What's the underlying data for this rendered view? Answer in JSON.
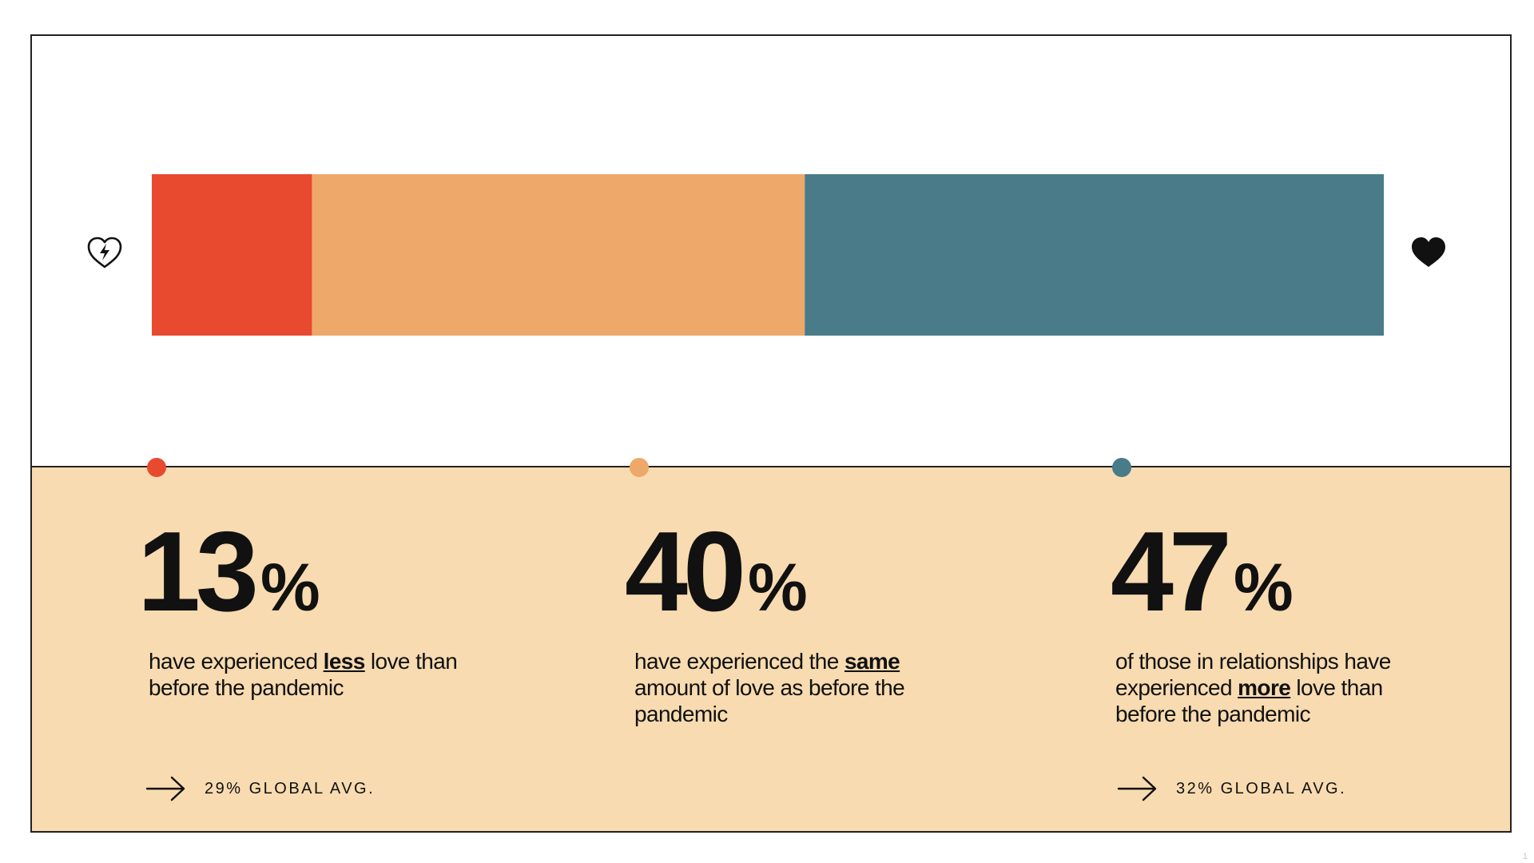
{
  "chart_data": {
    "type": "bar",
    "orientation": "horizontal-stacked",
    "categories": [
      "less",
      "same",
      "more"
    ],
    "values": [
      13,
      40,
      47
    ],
    "colors": [
      "#e84a30",
      "#eea86a",
      "#497b88"
    ],
    "xlim": [
      0,
      100
    ],
    "legend": "none",
    "grid": false
  },
  "icons": {
    "left": "broken-heart-icon",
    "right": "heart-icon"
  },
  "stats": [
    {
      "value": "13",
      "symbol": "%",
      "desc_pre": "have experienced ",
      "desc_bold": "less",
      "desc_post": " love than before the pandemic",
      "avg": "29% GLOBAL AVG.",
      "color": "#e84a30"
    },
    {
      "value": "40",
      "symbol": "%",
      "desc_pre": "have experienced the ",
      "desc_bold": "same",
      "desc_post": " amount of love as before the pandemic",
      "avg": "",
      "color": "#eea86a"
    },
    {
      "value": "47",
      "symbol": "%",
      "desc_pre": "of those in relationships have experienced ",
      "desc_bold": "more",
      "desc_post": " love than before the pandemic",
      "avg": "32% GLOBAL AVG.",
      "color": "#497b88"
    }
  ],
  "page_number": "1",
  "colors": {
    "panel_bottom": "#f8dbb0",
    "border": "#222222"
  }
}
